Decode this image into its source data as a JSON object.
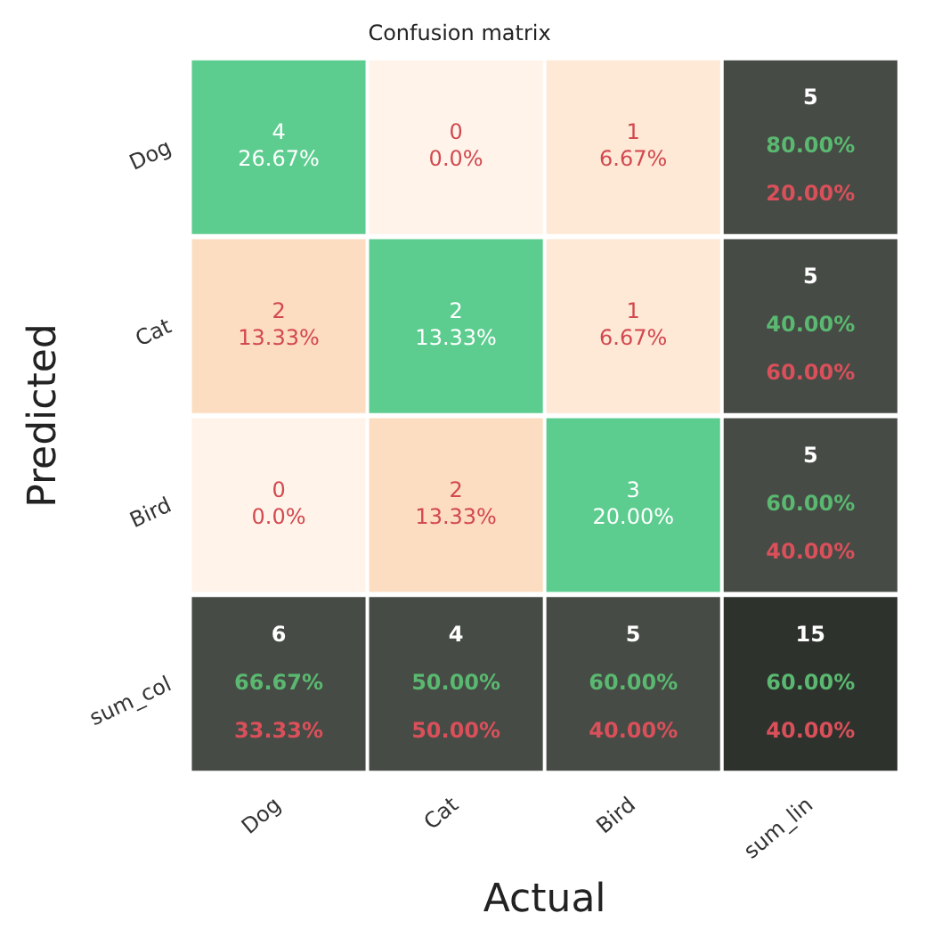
{
  "chart_data": {
    "type": "heatmap",
    "title": "Confusion matrix",
    "xlabel": "Actual",
    "ylabel": "Predicted",
    "data_labels": true,
    "categories": [
      "Dog",
      "Cat",
      "Bird",
      "sum_lin"
    ],
    "y_categories": [
      "Dog",
      "Cat",
      "Bird",
      "sum_col"
    ],
    "cells": [
      [
        4,
        0,
        1,
        5
      ],
      [
        2,
        2,
        1,
        5
      ],
      [
        0,
        2,
        3,
        5
      ],
      [
        6,
        4,
        5,
        15
      ]
    ],
    "annotations": [
      "26.67%",
      "0.0%",
      "6.67%",
      "80.00%",
      "20.00%",
      "13.33%",
      "13.33%",
      "6.67%",
      "40.00%",
      "60.00%",
      "0.0%",
      "13.33%",
      "20.00%",
      "60.00%",
      "40.00%",
      "66.67%",
      "33.33%",
      "50.00%",
      "50.00%",
      "60.00%",
      "40.00%",
      "60.00%",
      "40.00%"
    ]
  }
}
